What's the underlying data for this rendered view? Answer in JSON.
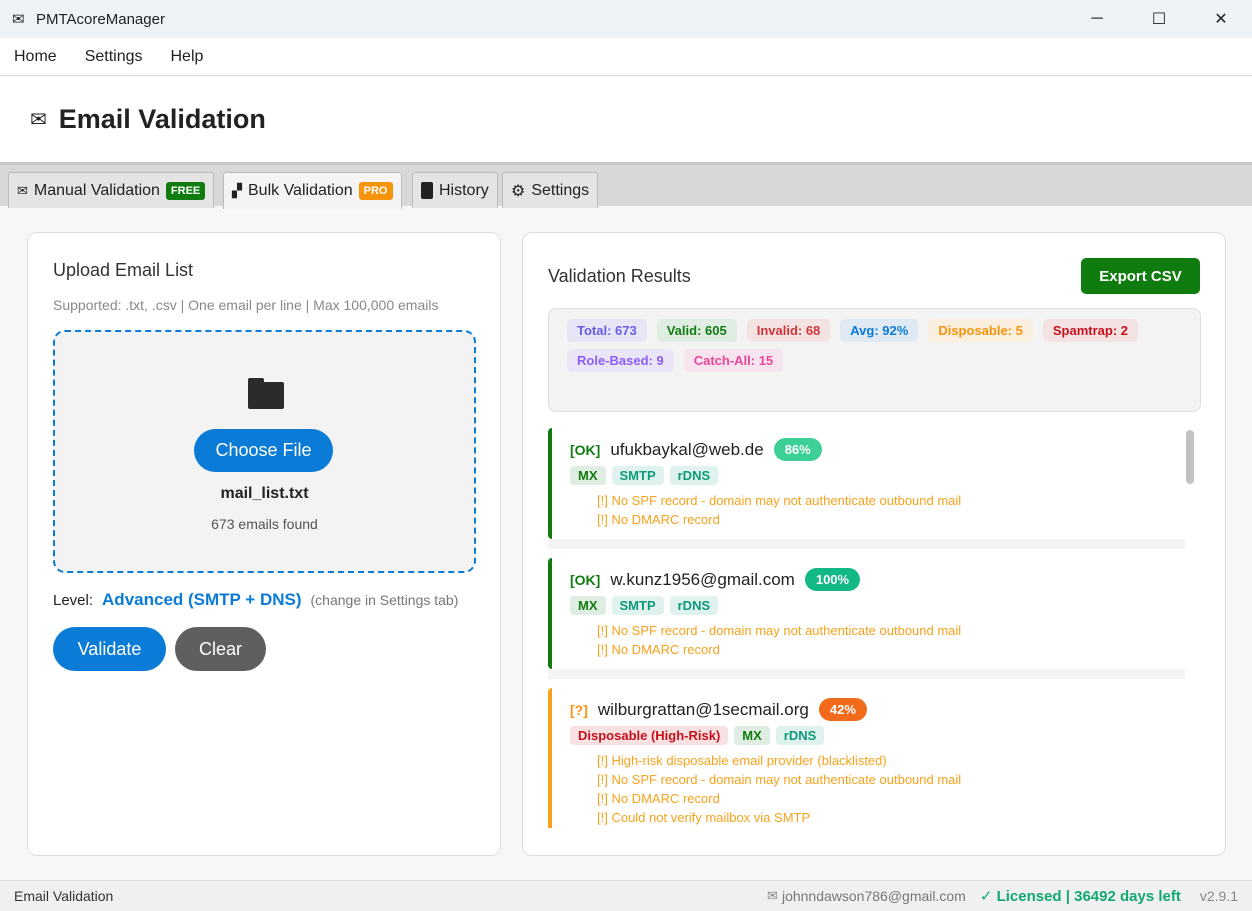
{
  "window": {
    "title": "PMTAcoreManager",
    "icon": "mail-icon",
    "minimize": "─",
    "maximize": "☐",
    "close": "✕"
  },
  "menu": [
    "Home",
    "Settings",
    "Help"
  ],
  "header": {
    "icon": "✉",
    "title": "Email Validation"
  },
  "tabs": [
    {
      "icon": "✉",
      "label": "Manual Validation",
      "badge": "FREE",
      "badge_color": "#107c10"
    },
    {
      "icon": "📦",
      "label": "Bulk Validation",
      "badge": "PRO",
      "badge_color": "#f7940c"
    },
    {
      "icon": "📋",
      "label": "History"
    },
    {
      "icon": "⚙",
      "label": "Settings"
    }
  ],
  "upload": {
    "title": "Upload Email List",
    "hint": "Supported: .txt, .csv | One email per line | Max 100,000 emails",
    "choose": "Choose File",
    "filename": "mail_list.txt",
    "found": "673 emails found",
    "level_label": "Level:",
    "level_value": "Advanced (SMTP + DNS)",
    "level_note": "(change in Settings tab)",
    "validate": "Validate",
    "clear": "Clear"
  },
  "results": {
    "title": "Validation Results",
    "export": "Export CSV",
    "stats": [
      {
        "label": "Total: 673",
        "color": "#6b5ce7",
        "bg": "#e7e6f7"
      },
      {
        "label": "Valid: 605",
        "color": "#107c10",
        "bg": "#e0ede2"
      },
      {
        "label": "Invalid: 68",
        "color": "#d13438",
        "bg": "#f5e3e3"
      },
      {
        "label": "Avg: 92%",
        "color": "#0a7bd6",
        "bg": "#e0eaf4"
      },
      {
        "label": "Disposable: 5",
        "color": "#f7940c",
        "bg": "#faeedf"
      },
      {
        "label": "Spamtrap: 2",
        "color": "#c8101d",
        "bg": "#f5e3e3"
      },
      {
        "label": "Role-Based: 9",
        "color": "#8b5cf6",
        "bg": "#ebe6f7"
      },
      {
        "label": "Catch-All: 15",
        "color": "#e9489a",
        "bg": "#f7e4ee"
      }
    ],
    "items": [
      {
        "status": "[OK]",
        "status_color": "#107c10",
        "email": "ufukbaykal@web.de",
        "score": "86%",
        "score_color": "#3ccf96",
        "border": "#107c10",
        "tags": [
          {
            "t": "MX",
            "c": "#107c10",
            "bg": "#e0ede2"
          },
          {
            "t": "SMTP",
            "c": "#0e9a7a",
            "bg": "#dff2ee"
          },
          {
            "t": "rDNS",
            "c": "#0e9a7a",
            "bg": "#dff2ee"
          }
        ],
        "warnings": [
          "[!] No SPF record - domain may not authenticate outbound mail",
          "[!] No DMARC record"
        ]
      },
      {
        "status": "[OK]",
        "status_color": "#107c10",
        "email": "w.kunz1956@gmail.com",
        "score": "100%",
        "score_color": "#12b886",
        "border": "#107c10",
        "tags": [
          {
            "t": "MX",
            "c": "#107c10",
            "bg": "#e0ede2"
          },
          {
            "t": "SMTP",
            "c": "#0e9a7a",
            "bg": "#dff2ee"
          },
          {
            "t": "rDNS",
            "c": "#0e9a7a",
            "bg": "#dff2ee"
          }
        ],
        "warnings": [
          "[!] No SPF record - domain may not authenticate outbound mail",
          "[!] No DMARC record"
        ]
      },
      {
        "status": "[?]",
        "status_color": "#f7940c",
        "email": "wilburgrattan@1secmail.org",
        "score": "42%",
        "score_color": "#f26b1d",
        "border": "#f7a21c",
        "tags": [
          {
            "t": "Disposable (High-Risk)",
            "c": "#c8101d",
            "bg": "#fae1e1"
          },
          {
            "t": "MX",
            "c": "#107c10",
            "bg": "#e0ede2"
          },
          {
            "t": "rDNS",
            "c": "#0e9a7a",
            "bg": "#dff2ee"
          }
        ],
        "warnings": [
          "[!] High-risk disposable email provider (blacklisted)",
          "[!] No SPF record - domain may not authenticate outbound mail",
          "[!] No DMARC record",
          "[!] Could not verify mailbox via SMTP"
        ]
      }
    ]
  },
  "statusbar": {
    "left": "Email Validation",
    "user": "johnndawson786@gmail.com",
    "license": "✓ Licensed | 36492 days left",
    "version": "v2.9.1"
  }
}
